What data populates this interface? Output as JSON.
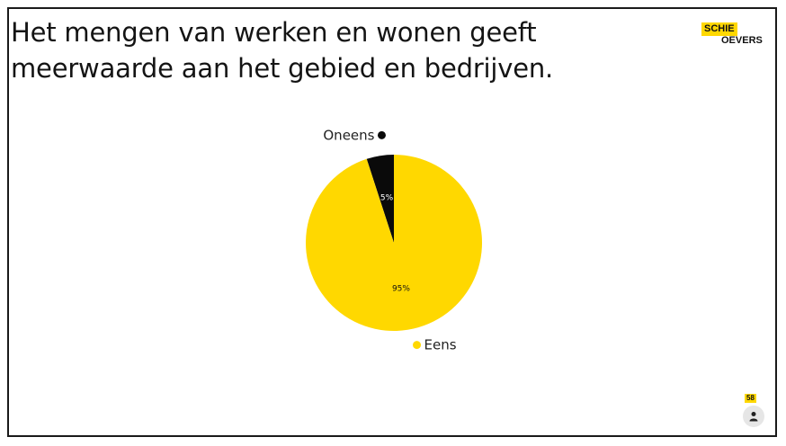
{
  "slide": {
    "title_line1": "Het mengen van werken en wonen geeft",
    "title_line2": "meerwaarde aan het gebied en bedrijven."
  },
  "logo": {
    "top_text": "SCHIE",
    "bottom_text": "OEVERS"
  },
  "footer": {
    "participant_count": "58",
    "participant_icon": "person-icon"
  },
  "colors": {
    "eens": "#ffd800",
    "oneens": "#0a0a0a",
    "accent": "#ffd800"
  },
  "chart_data": {
    "type": "pie",
    "title": "",
    "slices": [
      {
        "label": "Oneens",
        "value": 5,
        "value_label": "5%",
        "color": "#0a0a0a"
      },
      {
        "label": "Eens",
        "value": 95,
        "value_label": "95%",
        "color": "#ffd800"
      }
    ]
  }
}
